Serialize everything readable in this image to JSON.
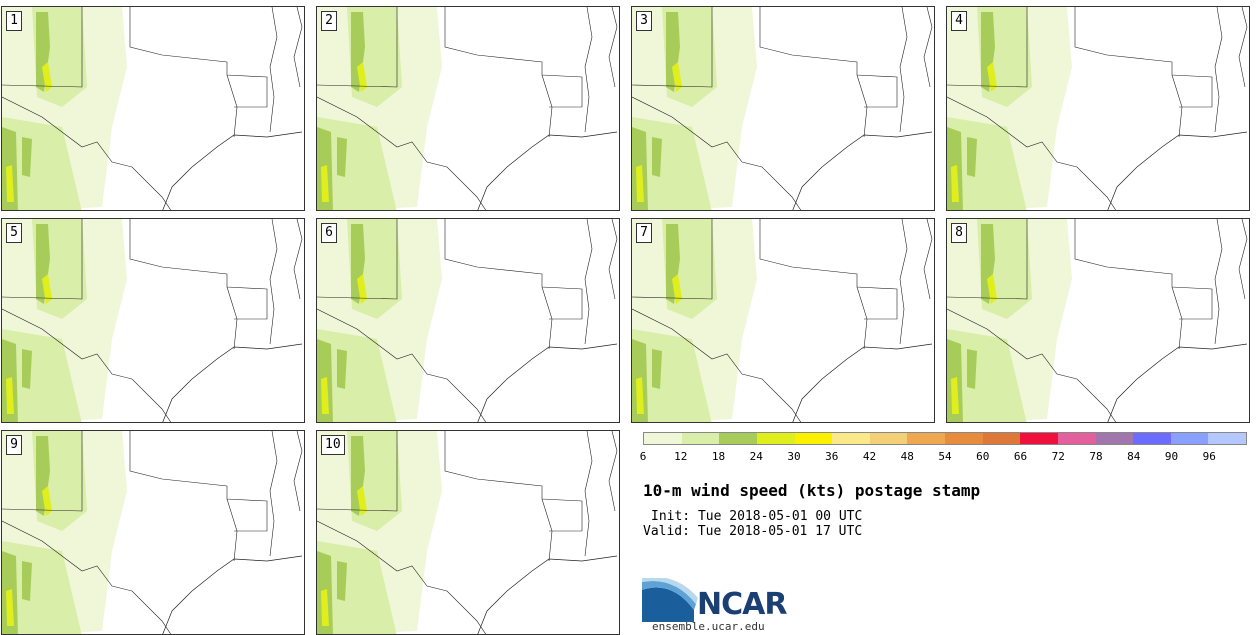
{
  "panels": [
    {
      "label": "1"
    },
    {
      "label": "2"
    },
    {
      "label": "3"
    },
    {
      "label": "4"
    },
    {
      "label": "5"
    },
    {
      "label": "6"
    },
    {
      "label": "7"
    },
    {
      "label": "8"
    },
    {
      "label": "9"
    },
    {
      "label": "10"
    }
  ],
  "colorbar": {
    "colors": [
      "#f0f6d8",
      "#d9eea8",
      "#a8cc5a",
      "#e0ee1c",
      "#faf000",
      "#fbe888",
      "#f3d078",
      "#f0a850",
      "#e78c3c",
      "#de7838",
      "#f0103c",
      "#e4609c",
      "#a076ac",
      "#6c6cff",
      "#8aa0ff",
      "#b4c8ff"
    ],
    "ticks": [
      "6",
      "12",
      "18",
      "24",
      "30",
      "36",
      "42",
      "48",
      "54",
      "60",
      "66",
      "72",
      "78",
      "84",
      "90",
      "96"
    ]
  },
  "title": "10-m wind speed (kts) postage stamp",
  "init": "Init: Tue 2018-05-01 00 UTC",
  "valid": "Valid: Tue 2018-05-01 17 UTC",
  "logo_text": "NCAR",
  "site": "ensemble.ucar.edu"
}
